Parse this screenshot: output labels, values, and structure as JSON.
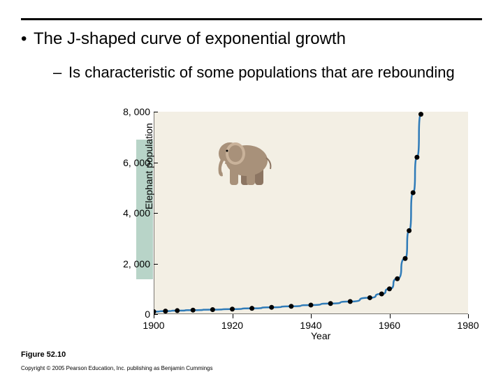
{
  "slide": {
    "main_bullet": "The J-shaped curve of exponential growth",
    "sub_bullet": "Is characteristic of some populations that are rebounding",
    "figure_label": "Figure 52.10",
    "copyright": "Copyright © 2005 Pearson Education, Inc. publishing as Benjamin Cummings"
  },
  "chart": {
    "type": "scatter+line",
    "xlabel": "Year",
    "ylabel": "Elephant population",
    "xlim": [
      1900,
      1980
    ],
    "ylim": [
      0,
      8000
    ],
    "xticks": [
      1900,
      1920,
      1940,
      1960,
      1980
    ],
    "xtick_labels": [
      "1900",
      "1920",
      "1940",
      "1960",
      "1980"
    ],
    "yticks": [
      0,
      2000,
      4000,
      6000,
      8000
    ],
    "ytick_labels": [
      "0",
      "2, 000",
      "4, 000",
      "6, 000",
      "8, 000"
    ],
    "plot_bg": "#f3efe4",
    "ylabel_band_color": "#b8d4c8",
    "line_color": "#2f7bb8",
    "line_width": 2.5,
    "marker_color": "#000000",
    "marker_radius": 3.5,
    "data": [
      {
        "x": 1900,
        "y": 100
      },
      {
        "x": 1903,
        "y": 120
      },
      {
        "x": 1906,
        "y": 140
      },
      {
        "x": 1910,
        "y": 160
      },
      {
        "x": 1915,
        "y": 180
      },
      {
        "x": 1920,
        "y": 200
      },
      {
        "x": 1925,
        "y": 230
      },
      {
        "x": 1930,
        "y": 270
      },
      {
        "x": 1935,
        "y": 310
      },
      {
        "x": 1940,
        "y": 360
      },
      {
        "x": 1945,
        "y": 420
      },
      {
        "x": 1950,
        "y": 500
      },
      {
        "x": 1955,
        "y": 650
      },
      {
        "x": 1958,
        "y": 800
      },
      {
        "x": 1960,
        "y": 1000
      },
      {
        "x": 1962,
        "y": 1400
      },
      {
        "x": 1964,
        "y": 2200
      },
      {
        "x": 1965,
        "y": 3300
      },
      {
        "x": 1966,
        "y": 4800
      },
      {
        "x": 1967,
        "y": 6200
      },
      {
        "x": 1968,
        "y": 7900
      }
    ],
    "label_fontsize": 14
  },
  "elephant_colors": {
    "body": "#a8917a",
    "body_shadow": "#8c7562",
    "ear": "#c9b29a",
    "tusk": "#f5f0e6"
  }
}
